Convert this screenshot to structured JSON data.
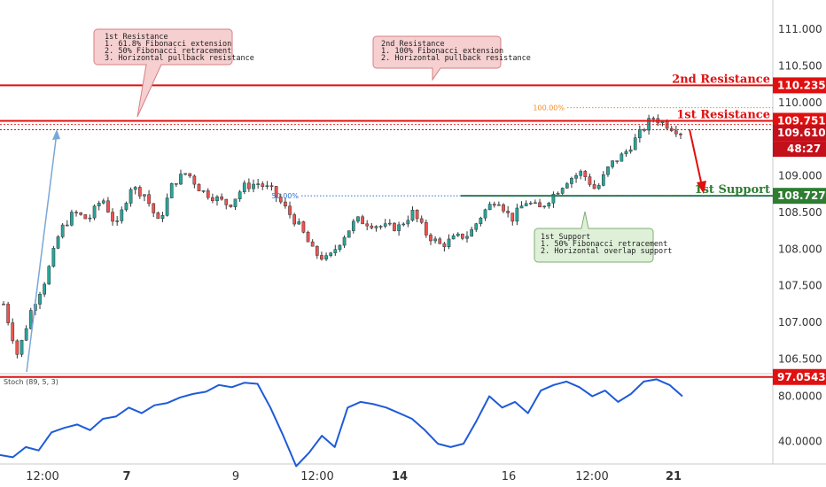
{
  "chart_data": {
    "type": "candlestick",
    "price_axis": {
      "ylim": [
        106.3,
        111.4
      ],
      "ticks": [
        "111.000",
        "110.500",
        "110.000",
        "109.000",
        "108.500",
        "108.000",
        "107.500",
        "107.000",
        "106.500"
      ],
      "tick_values": [
        111.0,
        110.5,
        110.0,
        109.0,
        108.5,
        108.0,
        107.5,
        107.0,
        106.5
      ]
    },
    "x_axis": {
      "ticks": [
        "12:00",
        "7",
        "9",
        "12:00",
        "14",
        "16",
        "12:00",
        "21"
      ],
      "bold_ticks": [
        "7",
        "14",
        "21"
      ]
    },
    "price_path": [
      107.25,
      106.55,
      107.2,
      107.6,
      108.25,
      108.5,
      108.4,
      108.7,
      108.3,
      108.85,
      108.75,
      108.35,
      108.9,
      109.05,
      108.8,
      108.7,
      108.6,
      108.85,
      108.9,
      108.8,
      108.55,
      108.3,
      107.95,
      107.85,
      108.15,
      108.4,
      108.35,
      108.3,
      108.3,
      108.5,
      108.2,
      108.05,
      108.15,
      108.2,
      108.5,
      108.7,
      108.4,
      108.65,
      108.55,
      108.75,
      108.95,
      109.05,
      108.8,
      109.15,
      109.3,
      109.55,
      109.8,
      109.7,
      109.6
    ],
    "levels": [
      {
        "name": "2nd Resistance",
        "label": "2nd Resistance",
        "value": 110.235,
        "badge": "110.235",
        "color": "#e01010"
      },
      {
        "name": "1st Resistance",
        "label": "1st Resistance",
        "value": 109.751,
        "badge": "109.751",
        "color": "#e01010"
      },
      {
        "name": "1st Support",
        "label": "1st Support",
        "value": 108.727,
        "badge": "108.727",
        "color": "#2e7d32"
      }
    ],
    "current_price": {
      "value": "109.610",
      "countdown": "48:27"
    },
    "fibonacci": [
      {
        "label": "100.00%",
        "value": 109.93,
        "color": "#f28c28"
      },
      {
        "label": "50.00%",
        "value": 108.727,
        "color": "#2f6fd6"
      }
    ],
    "annotations": [
      {
        "lines": [
          "1st Resistance",
          "1. 61.8% Fibonacci extension",
          "2. 50% Fibonacci retracement",
          "3. Horizontal pullback resistance"
        ],
        "style": "red"
      },
      {
        "lines": [
          "2nd Resistance",
          "1. 100% Fibonacci extension",
          "2. Horizontal pullback resistance"
        ],
        "style": "red"
      },
      {
        "lines": [
          "1st Support",
          "1. 50% Fibonacci retracement",
          "2. Horizontal overlap support"
        ],
        "style": "green"
      }
    ],
    "stochastic": {
      "label": "Stoch (89, 5, 3)",
      "ylim": [
        20,
        100
      ],
      "ticks": [
        "80.0000",
        "40.0000"
      ],
      "tick_values": [
        80,
        40
      ],
      "level": {
        "value": 97.0543,
        "badge": "97.0543"
      },
      "values": [
        28,
        26,
        35,
        32,
        48,
        52,
        55,
        50,
        60,
        62,
        70,
        65,
        72,
        74,
        79,
        82,
        84,
        90,
        88,
        92,
        91,
        70,
        45,
        18,
        30,
        45,
        35,
        70,
        75,
        73,
        70,
        65,
        60,
        50,
        38,
        35,
        38,
        58,
        80,
        70,
        75,
        65,
        85,
        90,
        93,
        88,
        80,
        85,
        75,
        82,
        93,
        95,
        90,
        80
      ]
    },
    "colors": {
      "up": "#26a69a",
      "down": "#ef5350",
      "stoch_line": "#1e5bd8",
      "resistance": "#e01010",
      "support": "#2e7d32"
    }
  }
}
